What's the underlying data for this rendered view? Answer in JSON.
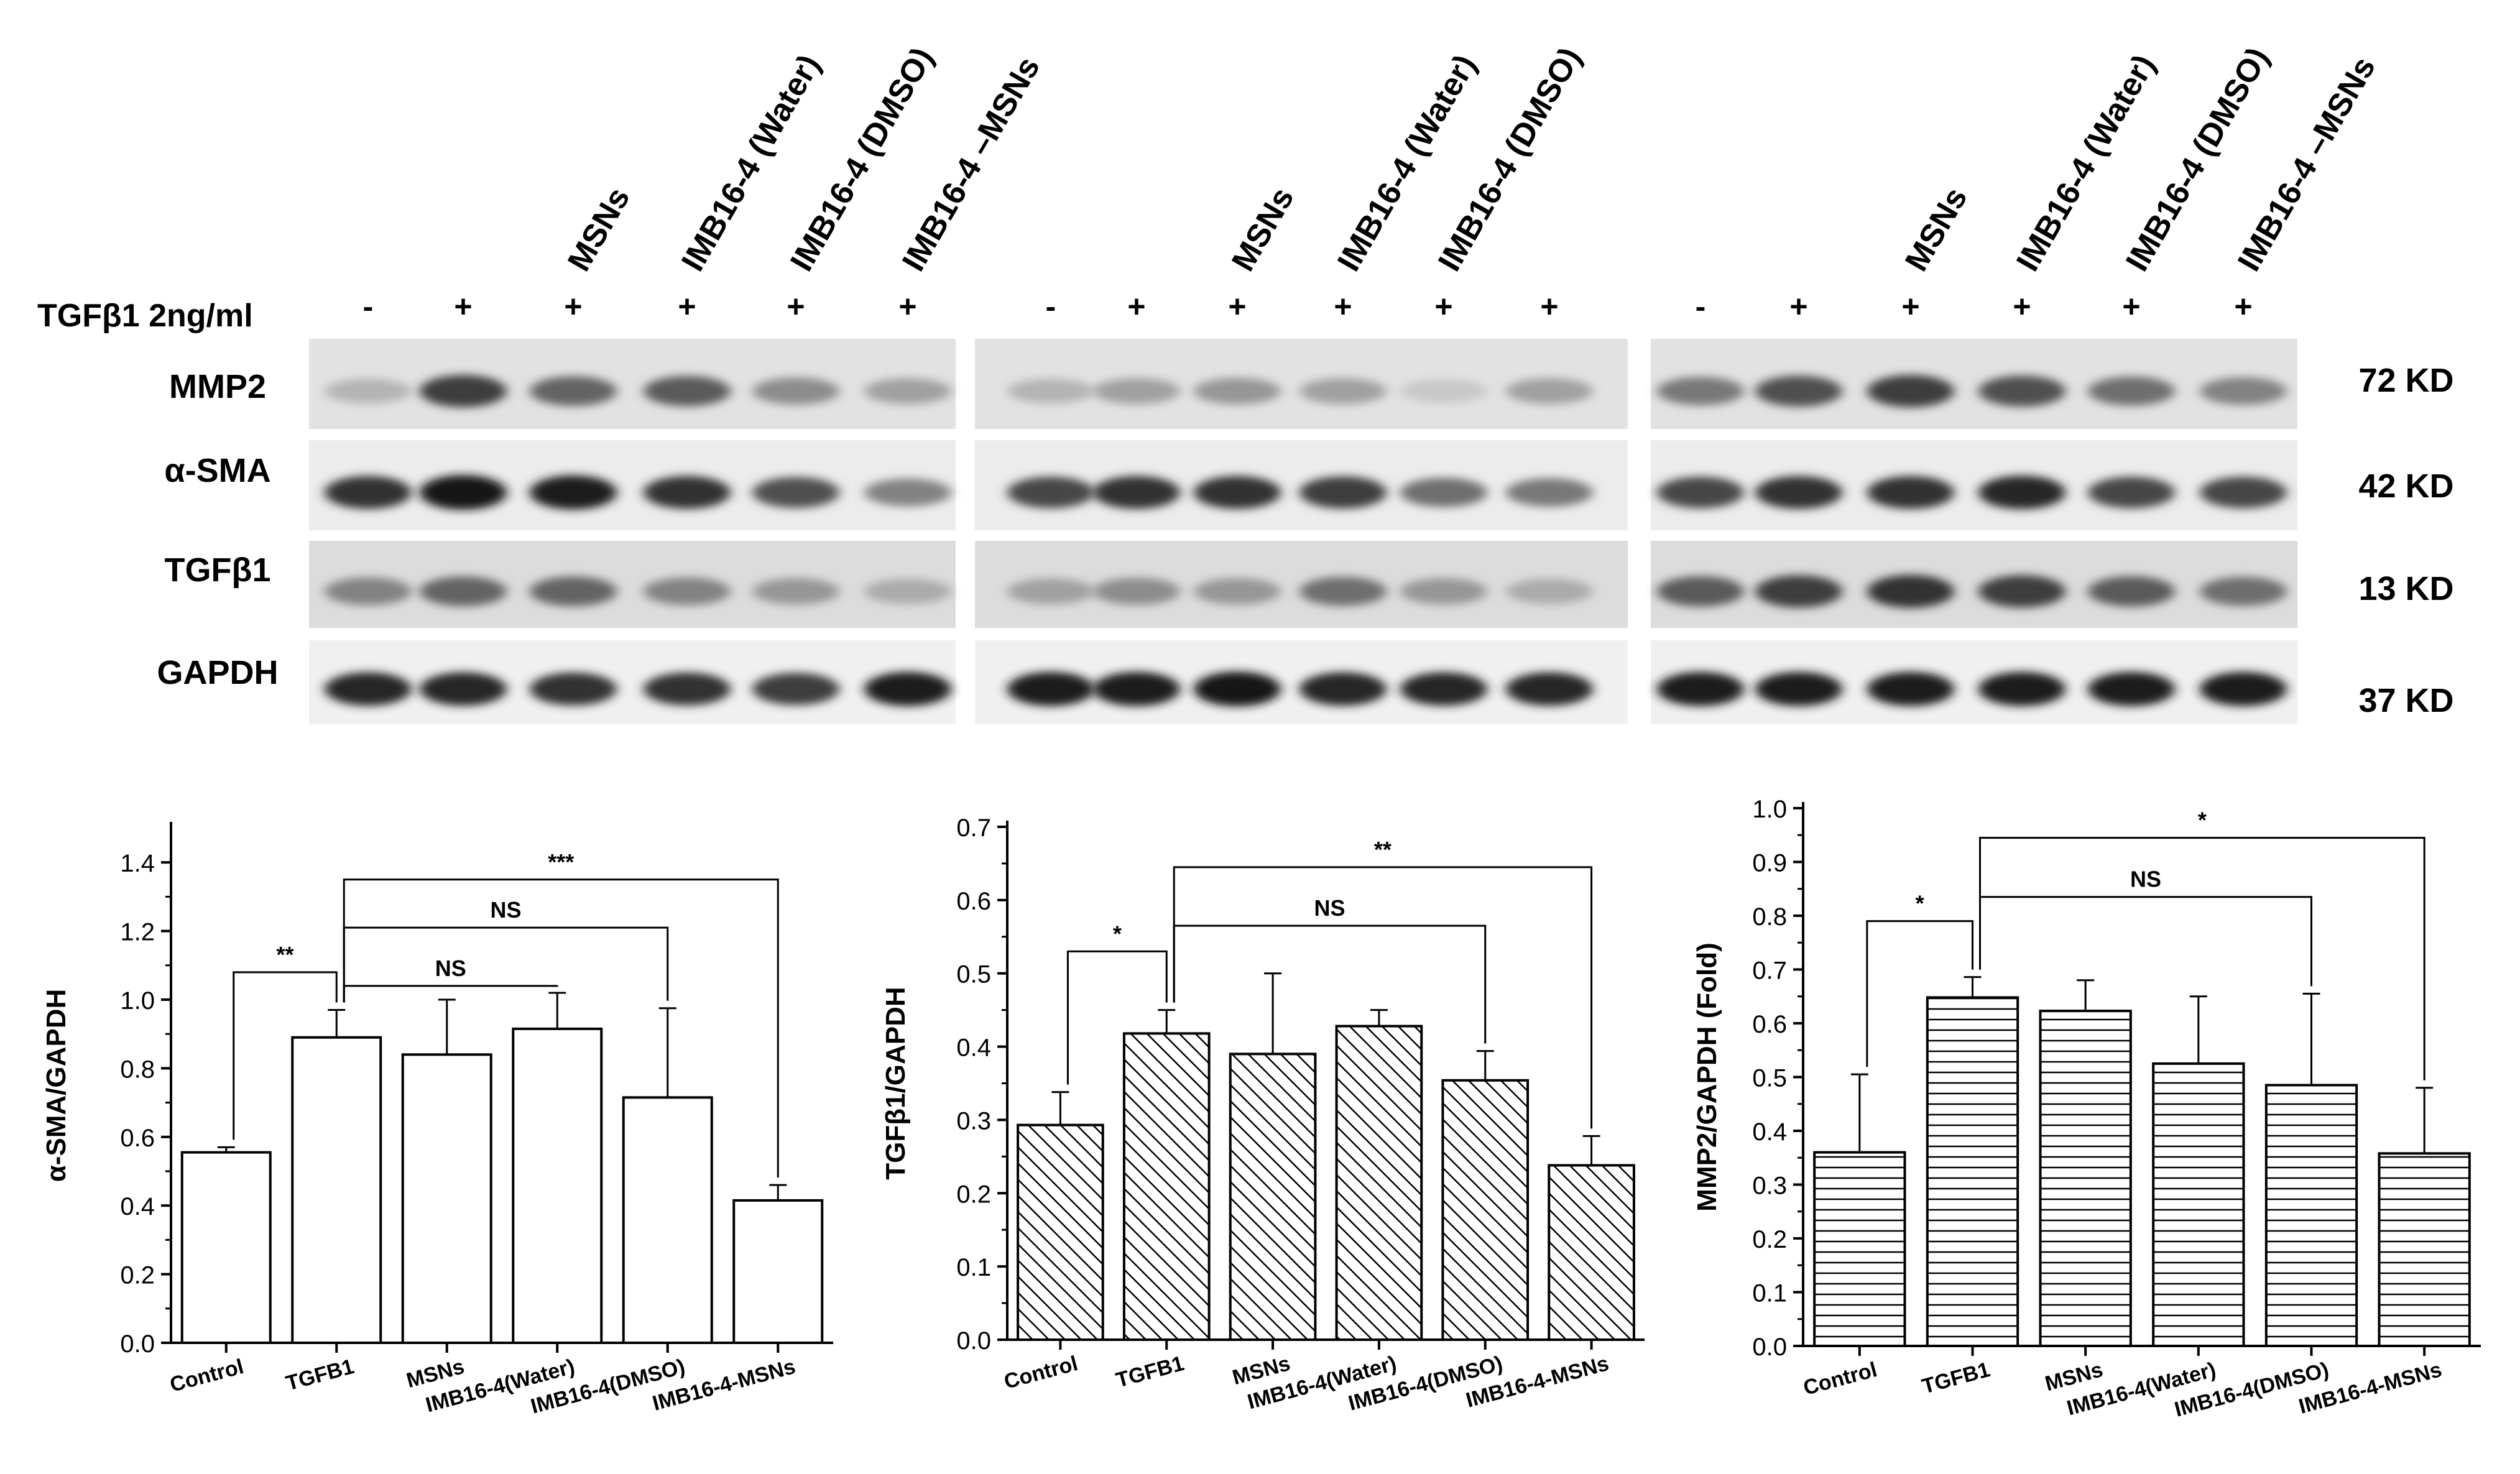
{
  "blots": {
    "treatment_label": "TGFβ1 2ng/ml",
    "treatments": [
      "-",
      "+",
      "+",
      "+",
      "+",
      "+"
    ],
    "lane_headers": [
      "",
      "",
      "MSNs",
      "IMB16-4 (Water)",
      "IMB16-4 (DMSO)",
      "IMB16-4 –MSNs"
    ],
    "panel_headers": [
      [
        "",
        "",
        "MSNs",
        "IMB16-4 (Water)",
        "IMB16-4 (DMSO)",
        "IMB16-4 –MSNs"
      ],
      [
        "",
        "",
        "MSNs",
        "IMB16-4 (Water)",
        "IMB16-4 (DMSO)",
        ""
      ],
      [
        "",
        "",
        "MSNs",
        "IMB16-4 (Water)",
        "IMB16-4 (DMSO)",
        "IMB16-4 –MSNs"
      ]
    ],
    "proteins": [
      "MMP2",
      "α-SMA",
      "TGFβ1",
      "GAPDH"
    ],
    "sizes": [
      "72 KD",
      "42 KD",
      "13 KD",
      "37 KD"
    ]
  },
  "chart_data": [
    {
      "type": "bar",
      "pattern": "none",
      "categories": [
        "Control",
        "TGFB1",
        "MSNs",
        "IMB16-4(Water)",
        "IMB16-4(DMSO)",
        "IMB16-4-MSNs"
      ],
      "values": [
        0.555,
        0.89,
        0.84,
        0.915,
        0.715,
        0.415
      ],
      "errors": [
        0.015,
        0.08,
        0.16,
        0.105,
        0.26,
        0.045
      ],
      "ylabel": "α-SMA/GAPDH",
      "ylim": [
        0,
        1.5
      ],
      "yticks": [
        "0.0",
        "0.2",
        "0.4",
        "0.6",
        "0.8",
        "1.0",
        "1.2",
        "1.4"
      ],
      "annotations": [
        {
          "from": 0,
          "to": 1,
          "label": "**",
          "y": 1.08
        },
        {
          "from": 1,
          "to": 3,
          "label": "NS",
          "y": 1.04
        },
        {
          "from": 1,
          "to": 4,
          "label": "NS",
          "y": 1.21
        },
        {
          "from": 1,
          "to": 5,
          "label": "***",
          "y": 1.35
        }
      ]
    },
    {
      "type": "bar",
      "pattern": "diagonal",
      "categories": [
        "Control",
        "TGFB1",
        "MSNs",
        "IMB16-4(Water)",
        "IMB16-4(DMSO)",
        "IMB16-4-MSNs"
      ],
      "values": [
        0.293,
        0.418,
        0.39,
        0.428,
        0.354,
        0.238
      ],
      "errors": [
        0.045,
        0.032,
        0.11,
        0.022,
        0.04,
        0.04
      ],
      "ylabel": "TGFβ1/GAPDH",
      "ylim": [
        0,
        0.7
      ],
      "yticks": [
        "0.0",
        "0.1",
        "0.2",
        "0.3",
        "0.4",
        "0.5",
        "0.6",
        "0.7"
      ],
      "annotations": [
        {
          "from": 0,
          "to": 1,
          "label": "*",
          "y": 0.53
        },
        {
          "from": 1,
          "to": 4,
          "label": "NS",
          "y": 0.565
        },
        {
          "from": 1,
          "to": 5,
          "label": "**",
          "y": 0.645
        }
      ]
    },
    {
      "type": "bar",
      "pattern": "horizontal",
      "categories": [
        "Control",
        "TGFB1",
        "MSNs",
        "IMB16-4(Water)",
        "IMB16-4(DMSO)",
        "IMB16-4-MSNs"
      ],
      "values": [
        0.36,
        0.648,
        0.623,
        0.525,
        0.485,
        0.358
      ],
      "errors": [
        0.145,
        0.038,
        0.057,
        0.125,
        0.17,
        0.122
      ],
      "ylabel": "MMP2/GAPDH (Fold)",
      "ylim": [
        0,
        1.0
      ],
      "yticks": [
        "0.0",
        "0.1",
        "0.2",
        "0.3",
        "0.4",
        "0.5",
        "0.6",
        "0.7",
        "0.8",
        "0.9",
        "1.0"
      ],
      "annotations": [
        {
          "from": 0,
          "to": 1,
          "label": "*",
          "y": 0.79
        },
        {
          "from": 1,
          "to": 4,
          "label": "NS",
          "y": 0.835
        },
        {
          "from": 1,
          "to": 5,
          "label": "*",
          "y": 0.945
        }
      ]
    }
  ]
}
